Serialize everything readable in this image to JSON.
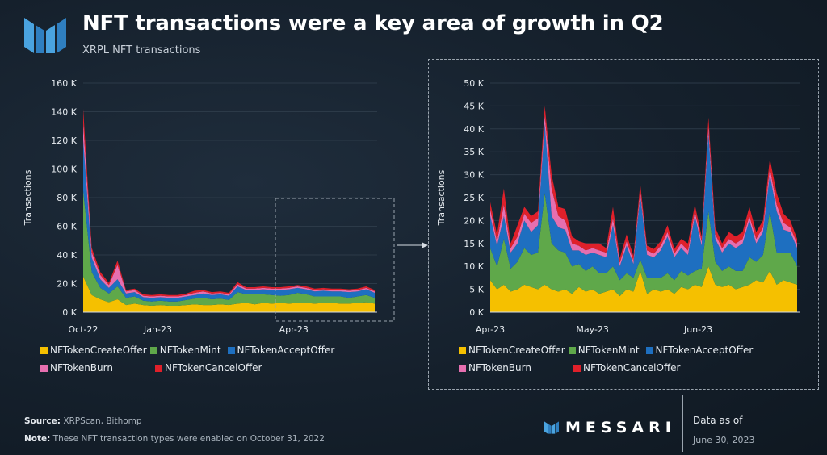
{
  "header": {
    "title": "NFT transactions were a key area of growth in Q2",
    "subtitle": "XRPL NFT transactions"
  },
  "colors": {
    "NFTokenCreateOffer": "#f5c000",
    "NFTokenMint": "#5fa84a",
    "NFTokenAcceptOffer": "#1e6fc0",
    "NFTokenBurn": "#e66fb0",
    "NFTokenCancelOffer": "#e0202a"
  },
  "chart_data": [
    {
      "type": "area",
      "stacked": true,
      "ylabel": "Transactions",
      "ylim": [
        0,
        160000
      ],
      "yticks": [
        "0 K",
        "20 K",
        "40 K",
        "60 K",
        "80 K",
        "100 K",
        "120 K",
        "140 K",
        "160 K"
      ],
      "xticks": [
        "Oct-22",
        "Jan-23",
        "Apr-23"
      ],
      "x_start": "2022-10-31",
      "x_end": "2023-06-30",
      "x_interval": "weekly",
      "series": [
        {
          "name": "NFTokenCreateOffer",
          "values": [
            25000,
            12000,
            9000,
            7000,
            9000,
            5000,
            6000,
            5000,
            4500,
            5000,
            4500,
            4500,
            5000,
            5500,
            5000,
            5000,
            5500,
            5000,
            6000,
            6500,
            5500,
            6500,
            6000,
            6500,
            6000,
            6500,
            6500,
            6000,
            6500,
            6500,
            6000,
            6000,
            6500,
            7000,
            6000
          ]
        },
        {
          "name": "NFTokenMint",
          "values": [
            60000,
            16000,
            8000,
            6000,
            9000,
            5000,
            5000,
            3000,
            3000,
            3000,
            3000,
            3000,
            3500,
            4000,
            5000,
            4000,
            4000,
            3500,
            8000,
            6000,
            7000,
            6000,
            6000,
            5000,
            6000,
            7000,
            6000,
            5000,
            4500,
            4500,
            5000,
            4000,
            4500,
            5000,
            4000
          ]
        },
        {
          "name": "NFTokenAcceptOffer",
          "values": [
            35000,
            10000,
            6000,
            4000,
            5000,
            3000,
            3000,
            2500,
            2500,
            2500,
            2500,
            2500,
            2500,
            2500,
            3000,
            3000,
            3000,
            3000,
            4000,
            3000,
            3000,
            3500,
            3500,
            4000,
            4000,
            3500,
            3500,
            3500,
            4000,
            3500,
            3500,
            4000,
            3500,
            4000,
            3500
          ]
        },
        {
          "name": "NFTokenBurn",
          "values": [
            12000,
            4000,
            3000,
            2000,
            10000,
            1500,
            1500,
            1000,
            1000,
            1000,
            1000,
            1000,
            1000,
            1500,
            1500,
            1000,
            1000,
            1000,
            1500,
            1000,
            1000,
            1000,
            1000,
            1000,
            1000,
            1000,
            1000,
            1000,
            1000,
            1000,
            1000,
            1000,
            1000,
            1000,
            1000
          ]
        },
        {
          "name": "NFTokenCancelOffer",
          "values": [
            10000,
            3000,
            2000,
            1500,
            3000,
            1000,
            1000,
            1000,
            1000,
            1000,
            1000,
            1000,
            1000,
            1500,
            1000,
            1000,
            1000,
            1000,
            1500,
            1000,
            1000,
            1000,
            1000,
            1000,
            1000,
            1000,
            1000,
            1000,
            1000,
            1000,
            1000,
            1000,
            1000,
            1000,
            1000
          ]
        }
      ]
    },
    {
      "type": "area",
      "stacked": true,
      "ylabel": "Transactions",
      "ylim": [
        0,
        50000
      ],
      "yticks": [
        "0 K",
        "5 K",
        "10 K",
        "15 K",
        "20 K",
        "25 K",
        "30 K",
        "35 K",
        "40 K",
        "45 K",
        "50 K"
      ],
      "xticks": [
        "Apr-23",
        "May-23",
        "Jun-23"
      ],
      "x_start": "2023-04-01",
      "x_end": "2023-06-30",
      "x_interval": "every 2 days",
      "series": [
        {
          "name": "NFTokenCreateOffer",
          "values": [
            7000,
            5000,
            6000,
            4500,
            5000,
            6000,
            5500,
            5000,
            6000,
            5000,
            4500,
            5000,
            4000,
            5500,
            4500,
            5000,
            4000,
            4500,
            5000,
            3500,
            5000,
            4500,
            9000,
            4000,
            5000,
            4500,
            5000,
            4000,
            5500,
            5000,
            6000,
            5500,
            10000,
            6000,
            5500,
            6000,
            5000,
            5500,
            6000,
            7000,
            6500,
            9000,
            6000,
            7000,
            6500,
            6000
          ]
        },
        {
          "name": "NFTokenMint",
          "values": [
            7000,
            5000,
            10000,
            5000,
            6000,
            8000,
            7000,
            8000,
            20000,
            10000,
            9000,
            8000,
            6000,
            5000,
            4500,
            5000,
            4500,
            4000,
            5000,
            3500,
            3500,
            3000,
            2500,
            3500,
            2500,
            3000,
            3500,
            3000,
            3500,
            3000,
            3000,
            4000,
            12000,
            5000,
            3500,
            4000,
            4000,
            3500,
            6000,
            4000,
            6000,
            13000,
            7000,
            6000,
            6500,
            4000
          ]
        },
        {
          "name": "NFTokenAcceptOffer",
          "values": [
            7000,
            4500,
            5000,
            3500,
            4000,
            6000,
            5000,
            6000,
            15000,
            6000,
            5000,
            5000,
            3500,
            3000,
            3500,
            3000,
            4000,
            3500,
            9000,
            3000,
            6000,
            3000,
            14000,
            5000,
            4500,
            6000,
            8000,
            5000,
            5000,
            4500,
            12000,
            5000,
            17000,
            5000,
            4000,
            5000,
            5000,
            6000,
            8000,
            4000,
            5000,
            8000,
            9000,
            5000,
            4500,
            4000
          ]
        },
        {
          "name": "NFTokenBurn",
          "values": [
            1500,
            1000,
            2500,
            1000,
            1500,
            1500,
            2000,
            1500,
            2000,
            6000,
            2500,
            2000,
            1500,
            1000,
            1000,
            1000,
            1000,
            1000,
            1500,
            800,
            1000,
            800,
            1000,
            1000,
            800,
            1000,
            1000,
            800,
            1000,
            1000,
            1000,
            1000,
            1500,
            1000,
            1000,
            1000,
            1000,
            1000,
            1000,
            1000,
            1000,
            1500,
            1500,
            1500,
            1000,
            1000
          ]
        },
        {
          "name": "NFTokenCancelOffer",
          "values": [
            1500,
            1500,
            3500,
            1000,
            2500,
            1500,
            1500,
            1500,
            2000,
            3000,
            2000,
            2500,
            1500,
            1000,
            1500,
            1000,
            1500,
            1000,
            2500,
            1000,
            1500,
            1000,
            1500,
            1000,
            1000,
            1000,
            1500,
            1000,
            1000,
            1500,
            1500,
            1000,
            2000,
            1500,
            1000,
            1500,
            1500,
            1500,
            2000,
            1500,
            1500,
            2000,
            2500,
            2000,
            1500,
            1000
          ]
        }
      ]
    }
  ],
  "legend": {
    "row1": [
      "NFTokenCreateOffer",
      "NFTokenMint",
      "NFTokenAcceptOffer"
    ],
    "row2": [
      "NFTokenBurn",
      "NFTokenCancelOffer"
    ]
  },
  "footer": {
    "source_label": "Source:",
    "source_text": " XRPScan, Bithomp",
    "note_label": "Note:",
    "note_text": " These NFT transaction types were enabled on October 31, 2022",
    "brand": "MESSARI",
    "as_of_label": "Data as of",
    "as_of_date": "June 30, 2023"
  }
}
